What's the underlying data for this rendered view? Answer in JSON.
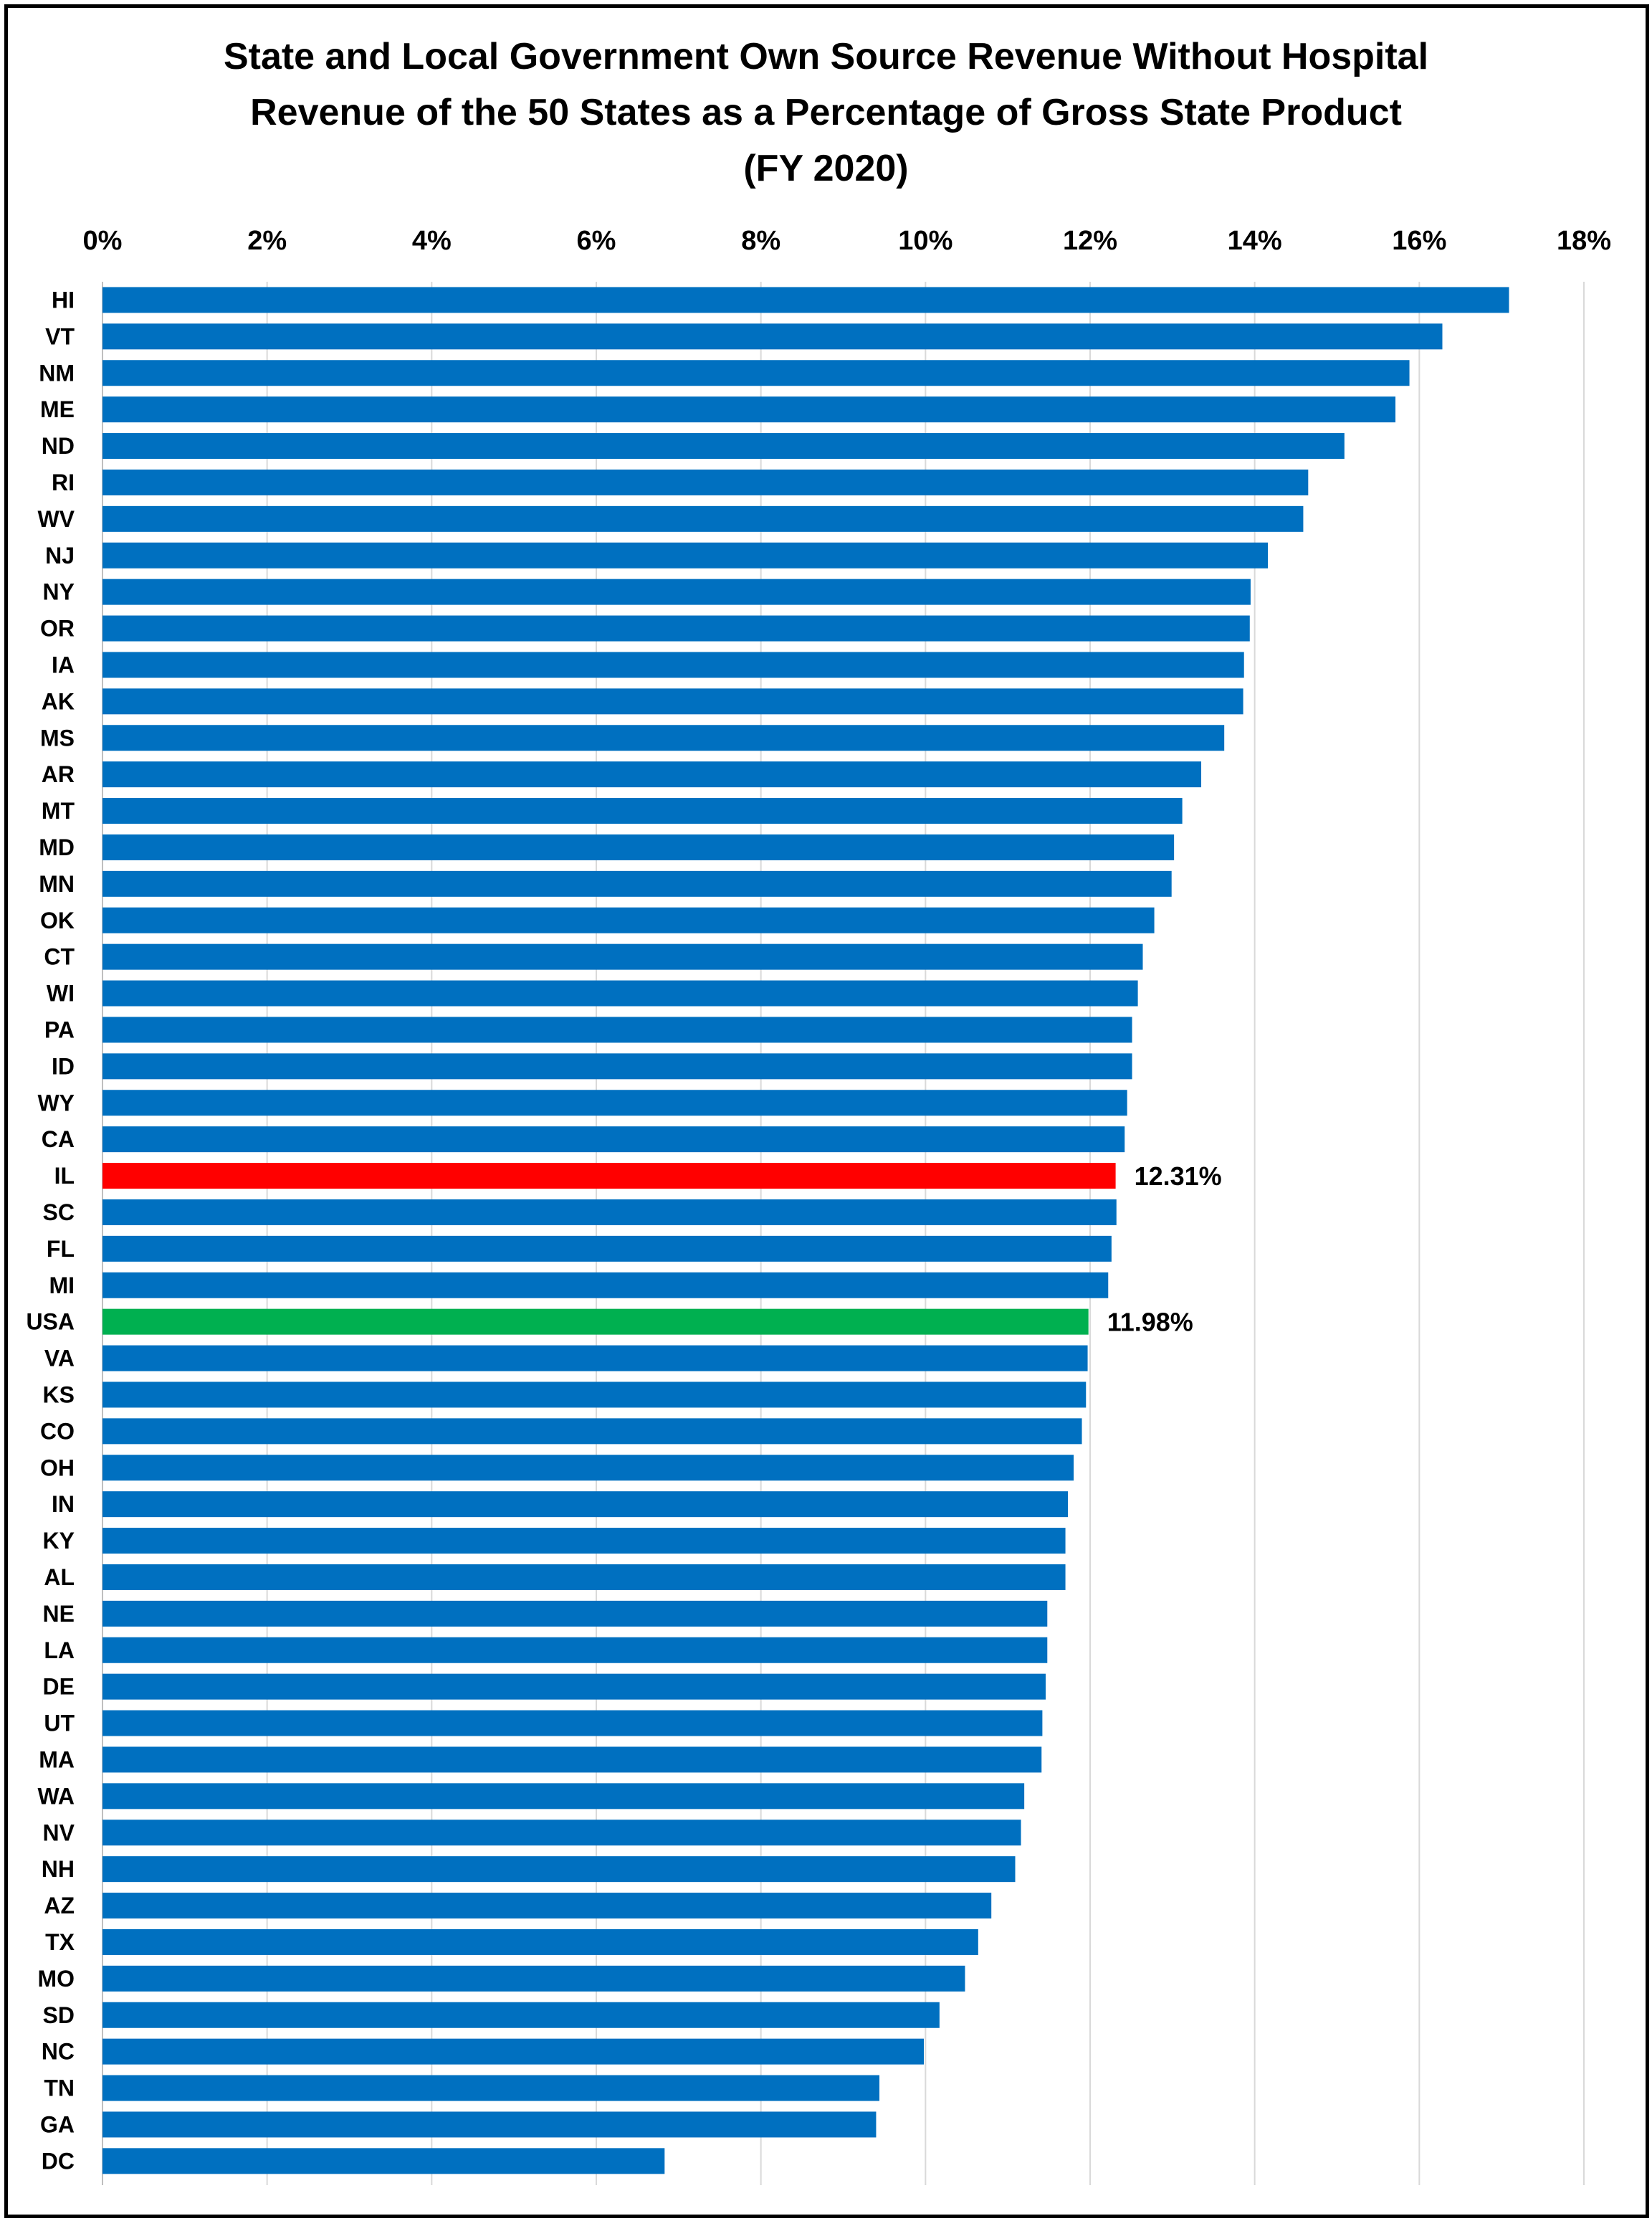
{
  "chart_data": {
    "type": "bar",
    "orientation": "horizontal",
    "title": [
      "State and Local Government Own Source Revenue Without Hospital",
      "Revenue of the 50 States as a Percentage of Gross State Product",
      "(FY 2020)"
    ],
    "x_axis_position": "top",
    "xlim": [
      0,
      18
    ],
    "x_ticks": [
      "0%",
      "2%",
      "4%",
      "6%",
      "8%",
      "10%",
      "12%",
      "14%",
      "16%",
      "18%"
    ],
    "grid": true,
    "legend": "none",
    "categories": [
      "HI",
      "VT",
      "NM",
      "ME",
      "ND",
      "RI",
      "WV",
      "NJ",
      "NY",
      "OR",
      "IA",
      "AK",
      "MS",
      "AR",
      "MT",
      "MD",
      "MN",
      "OK",
      "CT",
      "WI",
      "PA",
      "ID",
      "WY",
      "CA",
      "IL",
      "SC",
      "FL",
      "MI",
      "USA",
      "VA",
      "KS",
      "CO",
      "OH",
      "IN",
      "KY",
      "AL",
      "NE",
      "LA",
      "DE",
      "UT",
      "MA",
      "WA",
      "NV",
      "NH",
      "AZ",
      "TX",
      "MO",
      "SD",
      "NC",
      "TN",
      "GA",
      "DC"
    ],
    "values": [
      17.09,
      16.28,
      15.88,
      15.71,
      15.09,
      14.65,
      14.59,
      14.16,
      13.95,
      13.94,
      13.87,
      13.86,
      13.63,
      13.35,
      13.12,
      13.02,
      12.99,
      12.78,
      12.64,
      12.58,
      12.51,
      12.51,
      12.45,
      12.42,
      12.31,
      12.32,
      12.26,
      12.22,
      11.98,
      11.97,
      11.95,
      11.9,
      11.8,
      11.73,
      11.7,
      11.7,
      11.48,
      11.48,
      11.46,
      11.42,
      11.41,
      11.2,
      11.16,
      11.09,
      10.8,
      10.64,
      10.48,
      10.17,
      9.98,
      9.44,
      9.4,
      6.83
    ],
    "colors": {
      "default": "#0070C0",
      "IL": "#FF0000",
      "USA": "#00B050"
    },
    "data_labels": {
      "IL": "12.31%",
      "USA": "11.98%"
    }
  }
}
